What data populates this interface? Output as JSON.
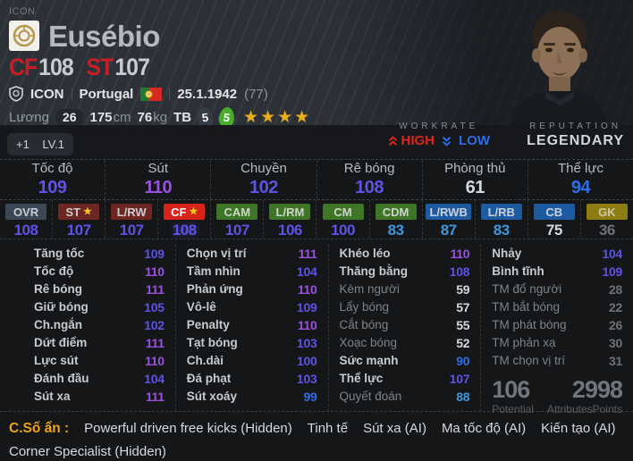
{
  "colors": {
    "accent_red": "#c51f27",
    "chip_active_red": "#d8231b",
    "chip_dark_red": "#6e2622",
    "chip_green": "#3e7527",
    "chip_blue": "#1e5aa0",
    "chip_gold": "#8f7d14",
    "chip_slate": "#3d4857",
    "stat_purple_110_plus": "#9b51e0",
    "stat_indigo_100s": "#5d53e6",
    "stat_blue_90s": "#2e6fe8",
    "stat_lightblue_80s": "#3f97dc",
    "stat_white_mid": "#d4d8dc",
    "stat_gray_low": "#6c7278",
    "gold_star": "#eaae1c",
    "green_foot_badge": "#49ad2b",
    "traits_gold": "#eda414",
    "workrate_high_red": "#d8281e",
    "workrate_low_blue": "#2e6ce6"
  },
  "icons": {
    "star_glyph": "★"
  },
  "header": {
    "tier_label": "ICON",
    "player_name": "Eusébio",
    "primary_positions": [
      {
        "pos": "CF",
        "rating": "108"
      },
      {
        "pos": "ST",
        "rating": "107"
      }
    ],
    "club_label": "ICON",
    "nation": "Portugal",
    "birthdate": "25.1.1942",
    "age": "(77)",
    "salary_label": "Lương",
    "salary_value": "26",
    "height_value": "175",
    "height_unit": "cm",
    "weight_value": "76",
    "weight_unit": "kg",
    "avg_label": "TB",
    "weak_foot": "5",
    "strong_foot": "5",
    "stars": "★★★★"
  },
  "level_badge": {
    "upgrade": "+1",
    "level": "LV.1"
  },
  "workrate": {
    "label": "WORKRATE",
    "high": "HIGH",
    "low": "LOW"
  },
  "reputation": {
    "label": "REPUTATION",
    "value": "LEGENDARY"
  },
  "summary_stats": [
    {
      "label": "Tốc độ",
      "value": "109"
    },
    {
      "label": "Sút",
      "value": "110"
    },
    {
      "label": "Chuyền",
      "value": "102"
    },
    {
      "label": "Rê bóng",
      "value": "108"
    },
    {
      "label": "Phòng thủ",
      "value": "61"
    },
    {
      "label": "Thể lực",
      "value": "94"
    }
  ],
  "position_ratings": [
    {
      "pos": "OVR",
      "value": "108",
      "color": "slate",
      "star": false,
      "active": false
    },
    {
      "pos": "ST",
      "value": "107",
      "color": "darkred",
      "star": true,
      "active": false
    },
    {
      "pos": "L/RW",
      "value": "107",
      "color": "darkred",
      "star": false,
      "active": false
    },
    {
      "pos": "CF",
      "value": "108",
      "color": "red",
      "star": true,
      "active": true
    },
    {
      "pos": "CAM",
      "value": "107",
      "color": "green",
      "star": false,
      "active": false
    },
    {
      "pos": "L/RM",
      "value": "106",
      "color": "green",
      "star": false,
      "active": false
    },
    {
      "pos": "CM",
      "value": "100",
      "color": "green",
      "star": false,
      "active": false
    },
    {
      "pos": "CDM",
      "value": "83",
      "color": "green",
      "star": false,
      "active": false
    },
    {
      "pos": "L/RWB",
      "value": "87",
      "color": "blue",
      "star": false,
      "active": false
    },
    {
      "pos": "L/RB",
      "value": "83",
      "color": "blue",
      "star": false,
      "active": false
    },
    {
      "pos": "CB",
      "value": "75",
      "color": "blue",
      "star": false,
      "active": false
    },
    {
      "pos": "GK",
      "value": "36",
      "color": "gold",
      "star": false,
      "active": false
    }
  ],
  "detail_columns": [
    {
      "rows": [
        {
          "label": "Tăng tốc",
          "value": "109"
        },
        {
          "label": "Tốc độ",
          "value": "110"
        },
        {
          "label": "Rê bóng",
          "value": "111"
        },
        {
          "label": "Giữ bóng",
          "value": "105"
        },
        {
          "label": "Ch.ngắn",
          "value": "102"
        },
        {
          "label": "Dứt điểm",
          "value": "111"
        },
        {
          "label": "Lực sút",
          "value": "110"
        },
        {
          "label": "Đánh đầu",
          "value": "104"
        },
        {
          "label": "Sút xa",
          "value": "111"
        }
      ]
    },
    {
      "rows": [
        {
          "label": "Chọn vị trí",
          "value": "111"
        },
        {
          "label": "Tầm nhìn",
          "value": "104"
        },
        {
          "label": "Phản ứng",
          "value": "110"
        },
        {
          "label": "Vô-lê",
          "value": "109"
        },
        {
          "label": "Penalty",
          "value": "110"
        },
        {
          "label": "Tạt bóng",
          "value": "103"
        },
        {
          "label": "Ch.dài",
          "value": "100"
        },
        {
          "label": "Đá phạt",
          "value": "103"
        },
        {
          "label": "Sút xoáy",
          "value": "99"
        }
      ]
    },
    {
      "rows": [
        {
          "label": "Khéo léo",
          "value": "110"
        },
        {
          "label": "Thăng bằng",
          "value": "108"
        },
        {
          "label": "Kèm người",
          "value": "59"
        },
        {
          "label": "Lẩy bóng",
          "value": "57"
        },
        {
          "label": "Cắt bóng",
          "value": "55"
        },
        {
          "label": "Xoạc bóng",
          "value": "52"
        },
        {
          "label": "Sức mạnh",
          "value": "90"
        },
        {
          "label": "Thể lực",
          "value": "107"
        },
        {
          "label": "Quyết đoán",
          "value": "88"
        }
      ]
    },
    {
      "rows": [
        {
          "label": "Nhảy",
          "value": "104"
        },
        {
          "label": "Bình tĩnh",
          "value": "109"
        },
        {
          "label": "TM đổ người",
          "value": "28"
        },
        {
          "label": "TM bắt bóng",
          "value": "22"
        },
        {
          "label": "TM phát bóng",
          "value": "26"
        },
        {
          "label": "TM phản xạ",
          "value": "30"
        },
        {
          "label": "TM chọn vị trí",
          "value": "31"
        }
      ]
    }
  ],
  "potential": {
    "value": "106",
    "label": "Potential"
  },
  "attributes_points": {
    "value": "2998",
    "label": "AttributesPoints"
  },
  "traits": {
    "label": "C.Số ẩn :",
    "line1": [
      "Powerful driven free kicks (Hidden)",
      "Tinh tế",
      "Sút xa (AI)",
      "Ma tốc độ (AI)",
      "Kiến tạo (AI)"
    ],
    "line2": [
      "Corner Specialist (Hidden)"
    ]
  }
}
